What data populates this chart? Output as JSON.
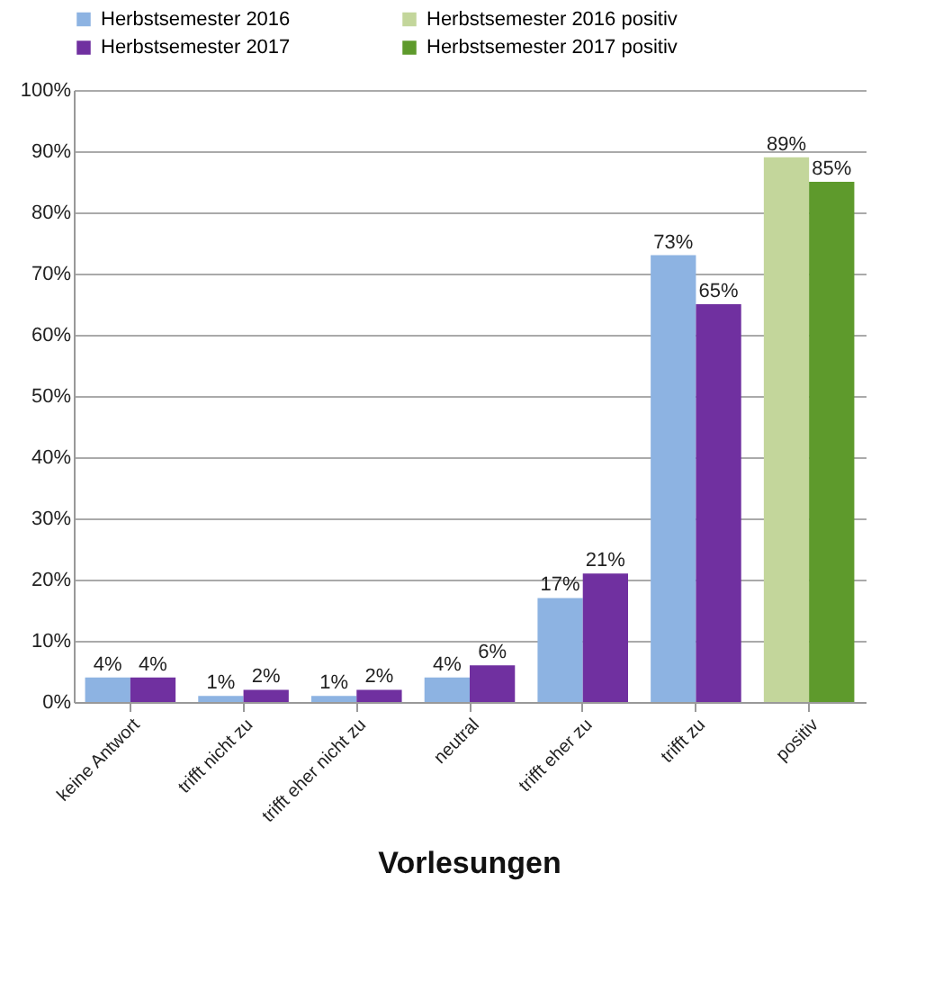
{
  "chart_data": {
    "type": "bar",
    "title": "Vorlesungen",
    "categories": [
      "keine Antwort",
      "trifft nicht zu",
      "trifft eher nicht zu",
      "neutral",
      "trifft eher zu",
      "trifft zu",
      "positiv"
    ],
    "series": [
      {
        "name": "Herbstsemester 2016",
        "color": "#8db3e2",
        "values": [
          4,
          1,
          1,
          4,
          17,
          73,
          null
        ],
        "value_labels": [
          "4%",
          "1%",
          "1%",
          "4%",
          "17%",
          "73%",
          null
        ]
      },
      {
        "name": "Herbstsemester 2016 positiv",
        "color": "#c3d69b",
        "values": [
          null,
          null,
          null,
          null,
          null,
          null,
          89
        ],
        "value_labels": [
          null,
          null,
          null,
          null,
          null,
          null,
          "89%"
        ]
      },
      {
        "name": "Herbstsemester 2017",
        "color": "#7030a0",
        "values": [
          4,
          2,
          2,
          6,
          21,
          65,
          null
        ],
        "value_labels": [
          "4%",
          "2%",
          "2%",
          "6%",
          "21%",
          "65%",
          null
        ]
      },
      {
        "name": "Herbstsemester 2017 positiv",
        "color": "#5e9a2c",
        "values": [
          null,
          null,
          null,
          null,
          null,
          null,
          85
        ],
        "value_labels": [
          null,
          null,
          null,
          null,
          null,
          null,
          "85%"
        ]
      }
    ],
    "ylim": [
      0,
      100
    ],
    "yticks": [
      {
        "value": 0,
        "label": "0%"
      },
      {
        "value": 10,
        "label": "10%"
      },
      {
        "value": 20,
        "label": "20%"
      },
      {
        "value": 30,
        "label": "30%"
      },
      {
        "value": 40,
        "label": "40%"
      },
      {
        "value": 50,
        "label": "50%"
      },
      {
        "value": 60,
        "label": "60%"
      },
      {
        "value": 70,
        "label": "70%"
      },
      {
        "value": 80,
        "label": "80%"
      },
      {
        "value": 90,
        "label": "90%"
      },
      {
        "value": 100,
        "label": "100%"
      }
    ],
    "grid": "y",
    "legend": "top"
  }
}
